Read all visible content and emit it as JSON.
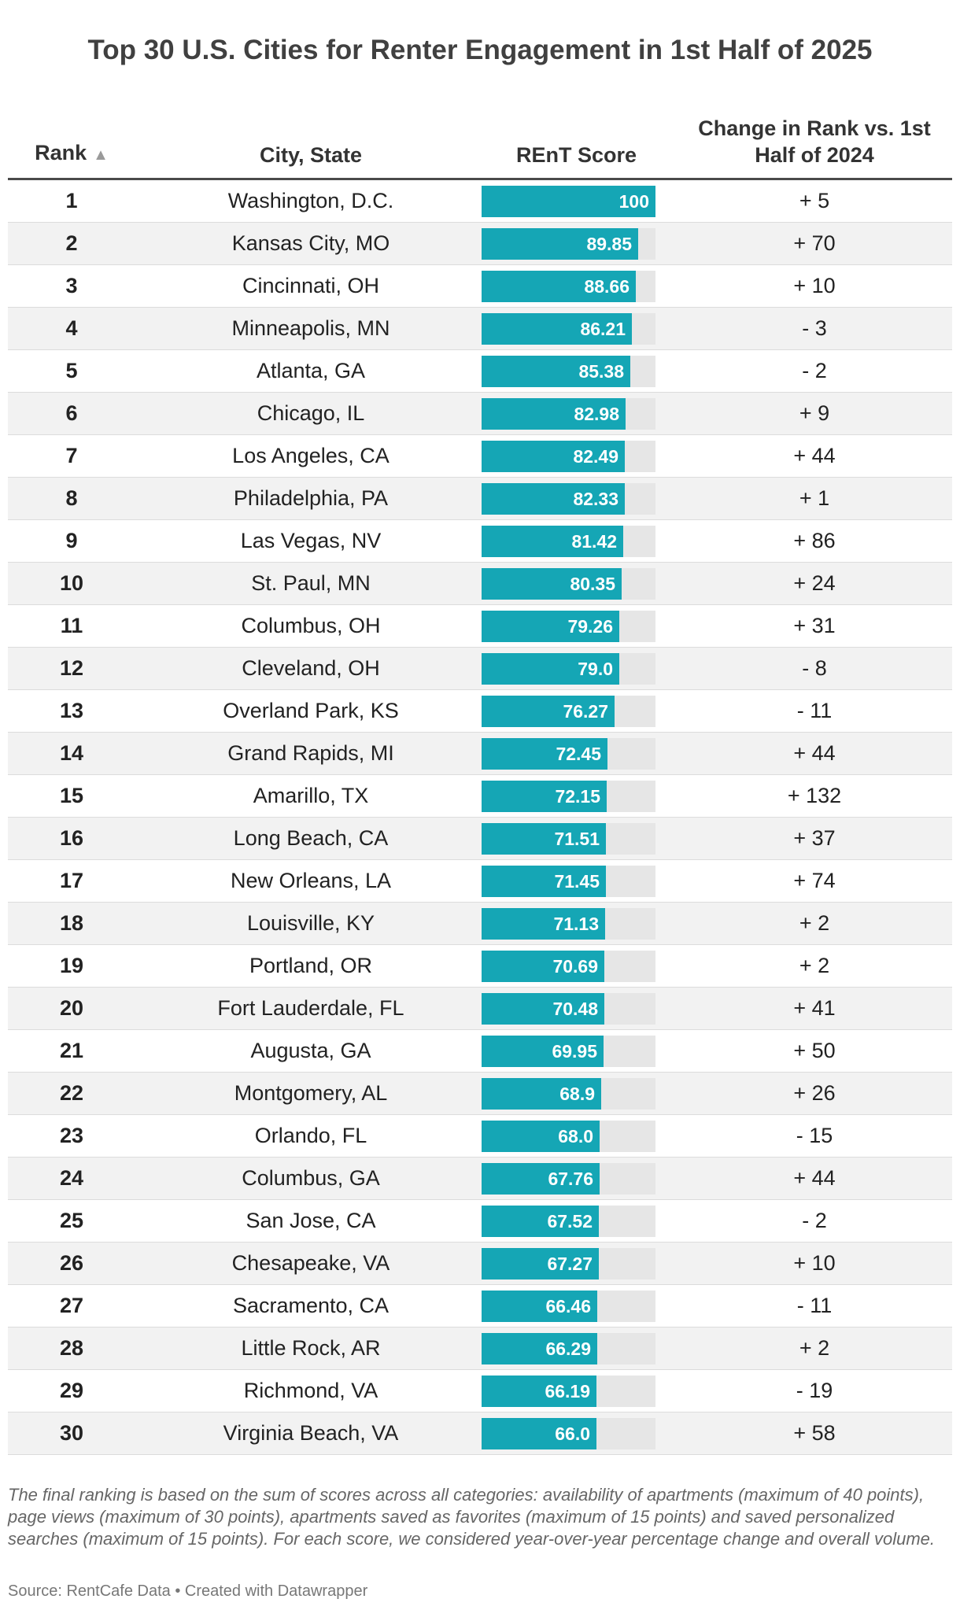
{
  "chart_data": {
    "type": "table",
    "title": "Top 30 U.S. Cities for Renter Engagement in 1st Half of 2025",
    "columns": [
      "Rank",
      "City, State",
      "REnT Score",
      "Change in Rank vs. 1st Half of 2024"
    ],
    "sort_indicator": "▲",
    "score_max": 100,
    "accent_color": "#15a6b5",
    "rows": [
      {
        "rank": "1",
        "city": "Washington, D.C.",
        "score": 100,
        "score_label": "100",
        "change": "+ 5"
      },
      {
        "rank": "2",
        "city": "Kansas City, MO",
        "score": 89.85,
        "score_label": "89.85",
        "change": "+ 70"
      },
      {
        "rank": "3",
        "city": "Cincinnati, OH",
        "score": 88.66,
        "score_label": "88.66",
        "change": "+ 10"
      },
      {
        "rank": "4",
        "city": "Minneapolis, MN",
        "score": 86.21,
        "score_label": "86.21",
        "change": "- 3"
      },
      {
        "rank": "5",
        "city": "Atlanta, GA",
        "score": 85.38,
        "score_label": "85.38",
        "change": "- 2"
      },
      {
        "rank": "6",
        "city": "Chicago, IL",
        "score": 82.98,
        "score_label": "82.98",
        "change": "+ 9"
      },
      {
        "rank": "7",
        "city": "Los Angeles, CA",
        "score": 82.49,
        "score_label": "82.49",
        "change": "+ 44"
      },
      {
        "rank": "8",
        "city": "Philadelphia, PA",
        "score": 82.33,
        "score_label": "82.33",
        "change": "+ 1"
      },
      {
        "rank": "9",
        "city": "Las Vegas, NV",
        "score": 81.42,
        "score_label": "81.42",
        "change": "+ 86"
      },
      {
        "rank": "10",
        "city": "St. Paul, MN",
        "score": 80.35,
        "score_label": "80.35",
        "change": "+ 24"
      },
      {
        "rank": "11",
        "city": "Columbus, OH",
        "score": 79.26,
        "score_label": "79.26",
        "change": "+ 31"
      },
      {
        "rank": "12",
        "city": "Cleveland, OH",
        "score": 79.0,
        "score_label": "79.0",
        "change": "- 8"
      },
      {
        "rank": "13",
        "city": "Overland Park, KS",
        "score": 76.27,
        "score_label": "76.27",
        "change": "- 11"
      },
      {
        "rank": "14",
        "city": "Grand Rapids, MI",
        "score": 72.45,
        "score_label": "72.45",
        "change": "+ 44"
      },
      {
        "rank": "15",
        "city": "Amarillo, TX",
        "score": 72.15,
        "score_label": "72.15",
        "change": "+ 132"
      },
      {
        "rank": "16",
        "city": "Long Beach, CA",
        "score": 71.51,
        "score_label": "71.51",
        "change": "+ 37"
      },
      {
        "rank": "17",
        "city": "New Orleans, LA",
        "score": 71.45,
        "score_label": "71.45",
        "change": "+ 74"
      },
      {
        "rank": "18",
        "city": "Louisville, KY",
        "score": 71.13,
        "score_label": "71.13",
        "change": "+ 2"
      },
      {
        "rank": "19",
        "city": "Portland, OR",
        "score": 70.69,
        "score_label": "70.69",
        "change": "+ 2"
      },
      {
        "rank": "20",
        "city": "Fort Lauderdale, FL",
        "score": 70.48,
        "score_label": "70.48",
        "change": "+ 41"
      },
      {
        "rank": "21",
        "city": "Augusta, GA",
        "score": 69.95,
        "score_label": "69.95",
        "change": "+ 50"
      },
      {
        "rank": "22",
        "city": "Montgomery, AL",
        "score": 68.9,
        "score_label": "68.9",
        "change": "+ 26"
      },
      {
        "rank": "23",
        "city": "Orlando, FL",
        "score": 68.0,
        "score_label": "68.0",
        "change": "- 15"
      },
      {
        "rank": "24",
        "city": "Columbus, GA",
        "score": 67.76,
        "score_label": "67.76",
        "change": "+ 44"
      },
      {
        "rank": "25",
        "city": "San Jose, CA",
        "score": 67.52,
        "score_label": "67.52",
        "change": "- 2"
      },
      {
        "rank": "26",
        "city": "Chesapeake, VA",
        "score": 67.27,
        "score_label": "67.27",
        "change": "+ 10"
      },
      {
        "rank": "27",
        "city": "Sacramento, CA",
        "score": 66.46,
        "score_label": "66.46",
        "change": "- 11"
      },
      {
        "rank": "28",
        "city": "Little Rock, AR",
        "score": 66.29,
        "score_label": "66.29",
        "change": "+ 2"
      },
      {
        "rank": "29",
        "city": "Richmond, VA",
        "score": 66.19,
        "score_label": "66.19",
        "change": "- 19"
      },
      {
        "rank": "30",
        "city": "Virginia Beach, VA",
        "score": 66.0,
        "score_label": "66.0",
        "change": "+ 58"
      }
    ],
    "footnote": "The final ranking is based on the sum of scores across all categories: availability of apartments (maximum of 40 points), page views (maximum of 30 points), apartments saved as favorites (maximum of 15 points) and saved personalized searches (maximum of 15 points). For each score, we considered year-over-year percentage change and overall volume.",
    "source": "Source: RentCafe Data • Created with Datawrapper"
  }
}
